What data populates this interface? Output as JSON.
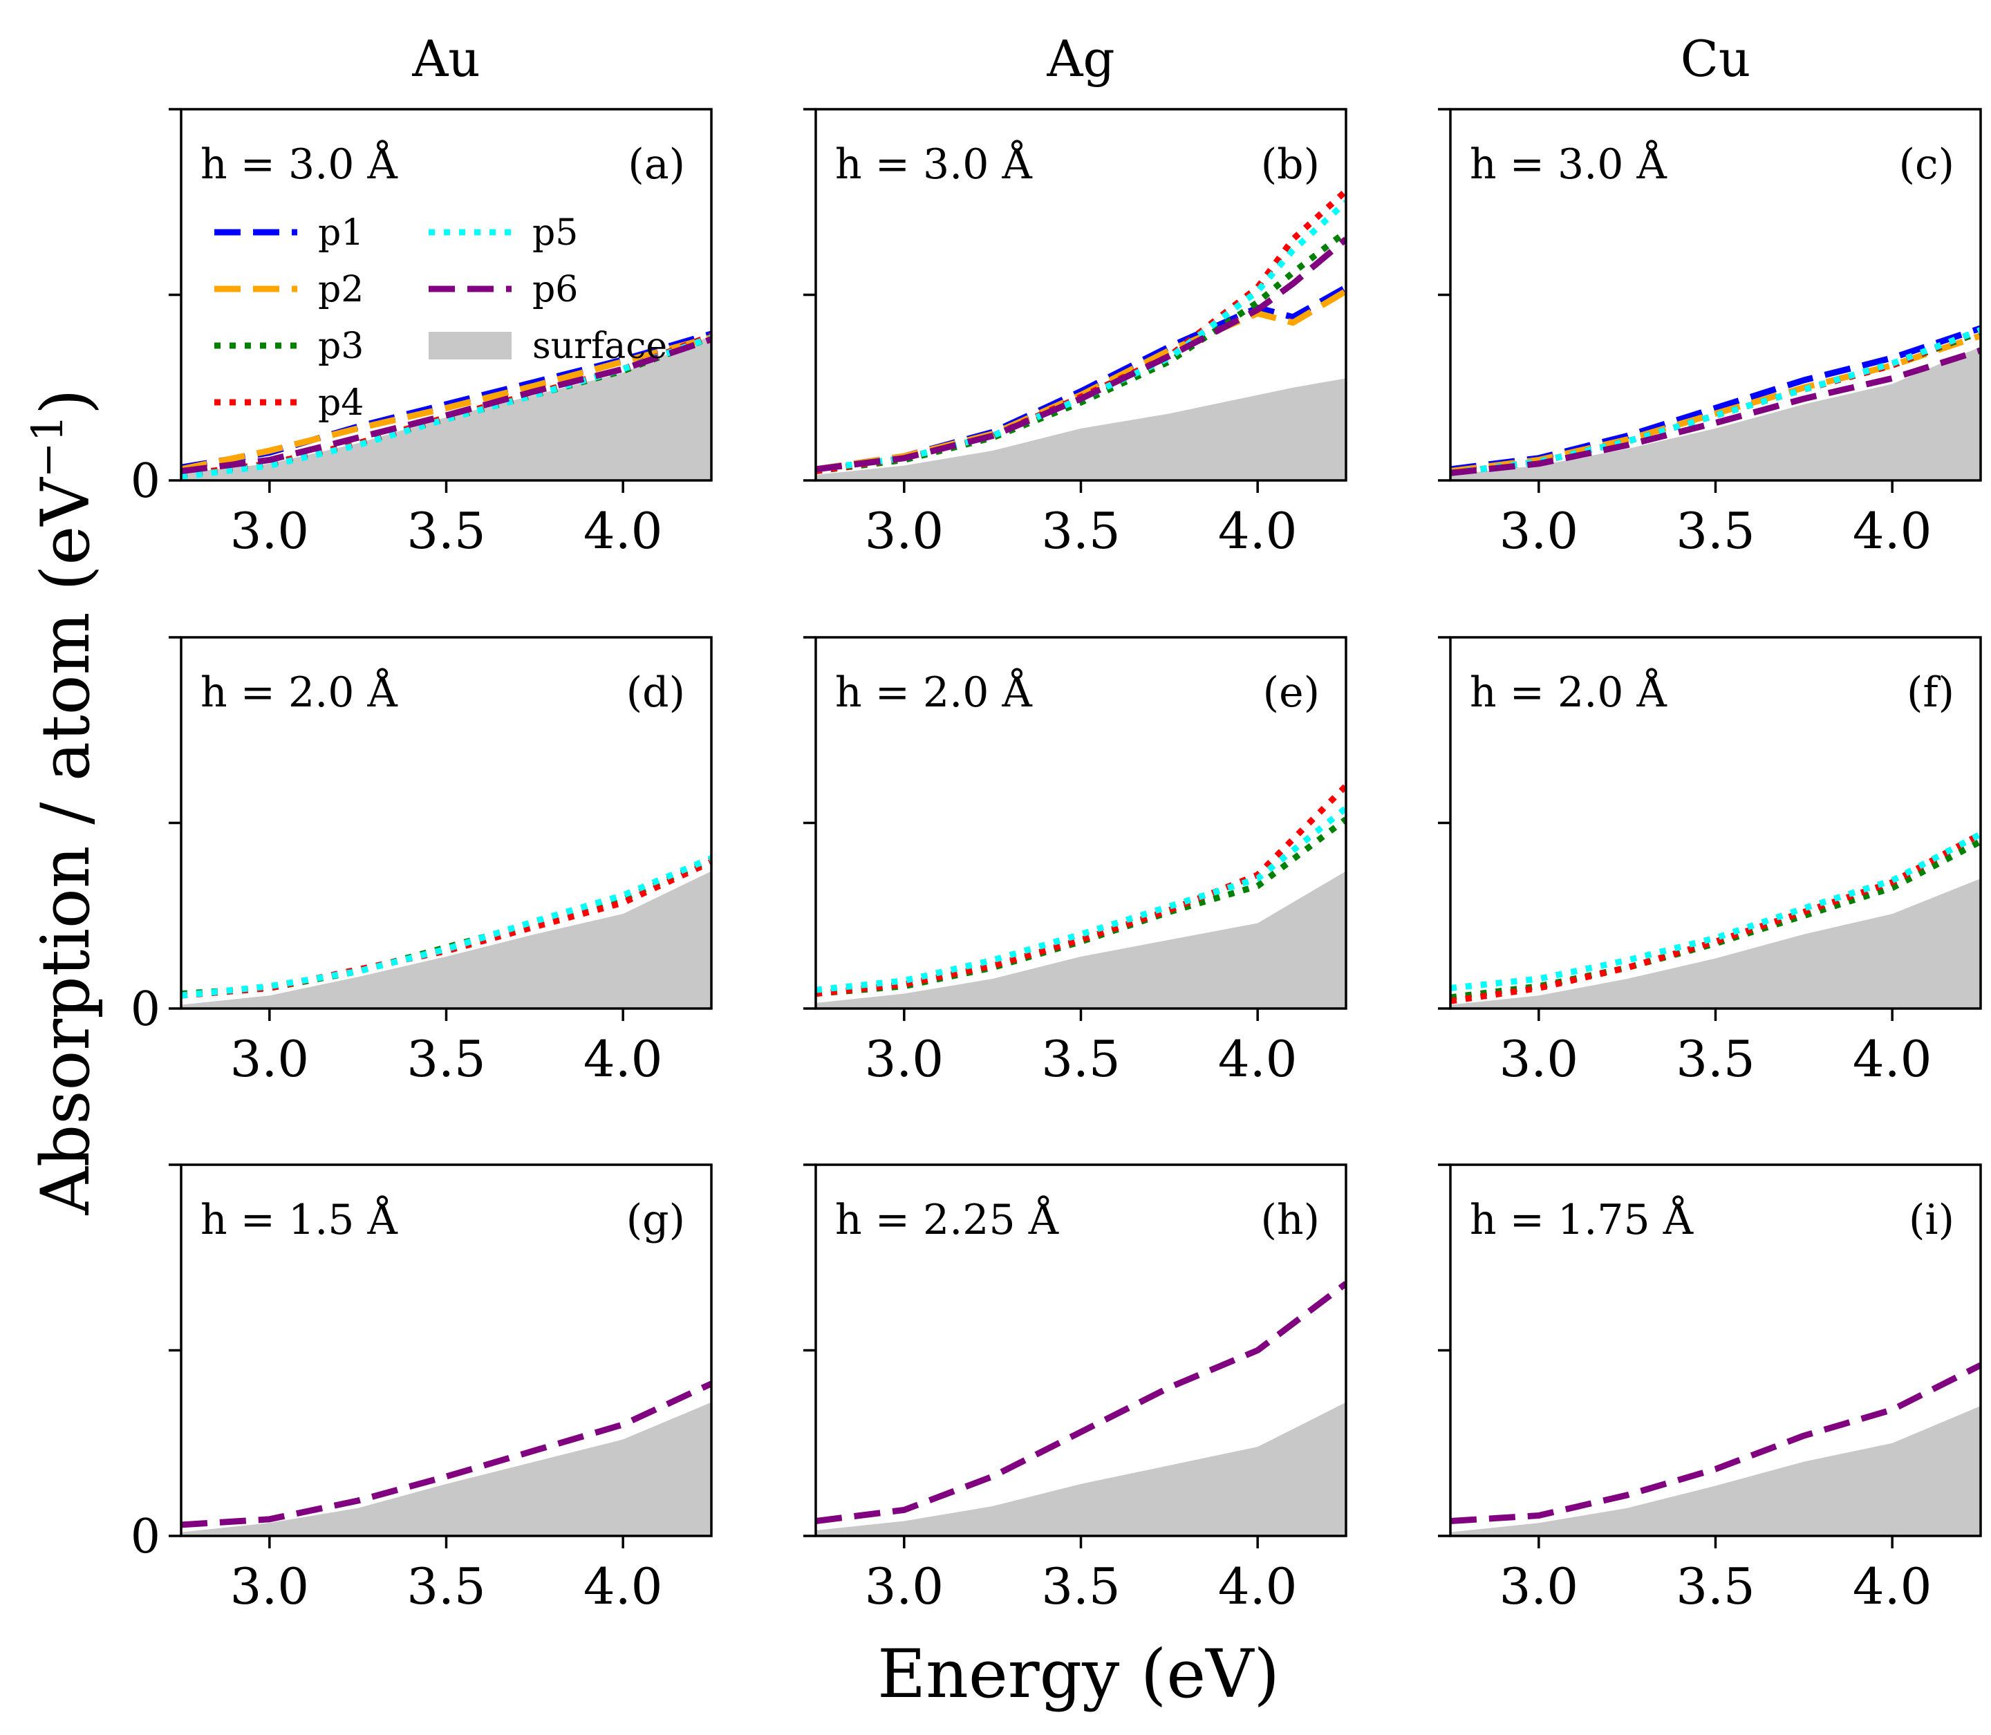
{
  "figure": {
    "ylabel": "Absorption / atom (eV",
    "ylabel_sup": "−1",
    "ylabel_close": ")",
    "xlabel": "Energy (eV)",
    "column_titles": [
      "Au",
      "Ag",
      "Cu"
    ]
  },
  "colors": {
    "p1": "#0000ff",
    "p2": "#ffa500",
    "p3": "#008000",
    "p4": "#ff0000",
    "p5": "#00ffff",
    "p6": "#800080",
    "surface": "#c8c8c8"
  },
  "legend": [
    {
      "key": "p1",
      "label": "p1",
      "style": "dashed"
    },
    {
      "key": "p2",
      "label": "p2",
      "style": "dashed"
    },
    {
      "key": "p3",
      "label": "p3",
      "style": "dotted"
    },
    {
      "key": "p4",
      "label": "p4",
      "style": "dotted"
    },
    {
      "key": "p5",
      "label": "p5",
      "style": "dotted"
    },
    {
      "key": "p6",
      "label": "p6",
      "style": "dashed"
    },
    {
      "key": "surface",
      "label": "surface",
      "style": "fill"
    }
  ],
  "chart_data": [
    {
      "type": "area",
      "panel": "(a)",
      "annotation": "h = 3.0 Å",
      "metal": "Au",
      "xlim": [
        2.75,
        4.25
      ],
      "ylim": [
        0,
        10
      ],
      "xticks": [
        "3.0",
        "3.5",
        "4.0"
      ],
      "yticks": [
        "0"
      ],
      "x": [
        2.75,
        3.0,
        3.25,
        3.5,
        3.75,
        4.0,
        4.25
      ],
      "surface": [
        0.2,
        0.45,
        1.0,
        1.7,
        2.3,
        2.9,
        3.9
      ],
      "series": [
        {
          "name": "p1",
          "values": [
            0.35,
            0.75,
            1.45,
            2.05,
            2.65,
            3.25,
            3.95
          ]
        },
        {
          "name": "p2",
          "values": [
            0.3,
            0.8,
            1.4,
            1.95,
            2.55,
            3.2,
            3.85
          ]
        },
        {
          "name": "p3",
          "values": [
            0.15,
            0.45,
            1.0,
            1.65,
            2.3,
            2.95,
            3.85
          ]
        },
        {
          "name": "p4",
          "values": [
            0.15,
            0.45,
            1.0,
            1.7,
            2.35,
            3.0,
            3.9
          ]
        },
        {
          "name": "p5",
          "values": [
            0.1,
            0.4,
            0.95,
            1.65,
            2.3,
            3.0,
            3.85
          ]
        },
        {
          "name": "p6",
          "values": [
            0.25,
            0.55,
            1.15,
            1.75,
            2.4,
            3.0,
            3.8
          ]
        }
      ]
    },
    {
      "type": "area",
      "panel": "(b)",
      "annotation": "h = 3.0 Å",
      "metal": "Ag",
      "xlim": [
        2.75,
        4.25
      ],
      "ylim": [
        0,
        10
      ],
      "xticks": [
        "3.0",
        "3.5",
        "4.0"
      ],
      "yticks": [
        ""
      ],
      "x": [
        2.75,
        3.0,
        3.25,
        3.5,
        3.75,
        4.0,
        4.1,
        4.25
      ],
      "surface": [
        0.15,
        0.4,
        0.8,
        1.4,
        1.8,
        2.3,
        2.5,
        2.75
      ],
      "series": [
        {
          "name": "p1",
          "values": [
            0.3,
            0.65,
            1.3,
            2.4,
            3.6,
            4.65,
            4.4,
            5.2
          ]
        },
        {
          "name": "p2",
          "values": [
            0.3,
            0.65,
            1.25,
            2.3,
            3.5,
            4.5,
            4.25,
            5.1
          ]
        },
        {
          "name": "p3",
          "values": [
            0.25,
            0.55,
            1.15,
            2.1,
            3.2,
            4.8,
            5.6,
            6.7
          ]
        },
        {
          "name": "p4",
          "values": [
            0.25,
            0.6,
            1.2,
            2.25,
            3.35,
            5.2,
            6.5,
            7.8
          ]
        },
        {
          "name": "p5",
          "values": [
            0.3,
            0.6,
            1.2,
            2.2,
            3.3,
            5.1,
            6.2,
            7.5
          ]
        },
        {
          "name": "p6",
          "values": [
            0.3,
            0.6,
            1.2,
            2.2,
            3.35,
            4.6,
            5.3,
            6.5
          ]
        }
      ]
    },
    {
      "type": "area",
      "panel": "(c)",
      "annotation": "h = 3.0 Å",
      "metal": "Cu",
      "xlim": [
        2.75,
        4.25
      ],
      "ylim": [
        0,
        10
      ],
      "xticks": [
        "3.0",
        "3.5",
        "4.0"
      ],
      "yticks": [
        ""
      ],
      "x": [
        2.75,
        3.0,
        3.25,
        3.5,
        3.75,
        4.0,
        4.25
      ],
      "surface": [
        0.15,
        0.4,
        0.85,
        1.4,
        2.05,
        2.6,
        3.6
      ],
      "series": [
        {
          "name": "p1",
          "values": [
            0.3,
            0.6,
            1.2,
            1.95,
            2.7,
            3.3,
            4.1
          ]
        },
        {
          "name": "p2",
          "values": [
            0.25,
            0.55,
            1.1,
            1.8,
            2.5,
            3.1,
            3.9
          ]
        },
        {
          "name": "p3",
          "values": [
            0.2,
            0.5,
            1.05,
            1.75,
            2.45,
            3.1,
            4.0
          ]
        },
        {
          "name": "p4",
          "values": [
            0.2,
            0.5,
            1.05,
            1.75,
            2.45,
            3.1,
            4.05
          ]
        },
        {
          "name": "p5",
          "values": [
            0.2,
            0.5,
            1.05,
            1.75,
            2.45,
            3.15,
            4.05
          ]
        },
        {
          "name": "p6",
          "values": [
            0.2,
            0.45,
            0.95,
            1.55,
            2.2,
            2.75,
            3.5
          ]
        }
      ]
    },
    {
      "type": "area",
      "panel": "(d)",
      "annotation": "h = 2.0 Å",
      "metal": "Au",
      "xlim": [
        2.75,
        4.25
      ],
      "ylim": [
        0,
        10
      ],
      "xticks": [
        "3.0",
        "3.5",
        "4.0"
      ],
      "yticks": [
        "0"
      ],
      "x": [
        2.75,
        3.0,
        3.25,
        3.5,
        3.75,
        4.0,
        4.25
      ],
      "surface": [
        0.1,
        0.35,
        0.85,
        1.4,
        2.0,
        2.55,
        3.7
      ],
      "series": [
        {
          "name": "p3",
          "values": [
            0.4,
            0.55,
            1.0,
            1.65,
            2.3,
            2.95,
            4.0
          ]
        },
        {
          "name": "p4",
          "values": [
            0.35,
            0.55,
            1.05,
            1.55,
            2.2,
            2.85,
            3.95
          ]
        },
        {
          "name": "p5",
          "values": [
            0.35,
            0.6,
            1.0,
            1.6,
            2.35,
            3.05,
            4.05
          ]
        }
      ]
    },
    {
      "type": "area",
      "panel": "(e)",
      "annotation": "h = 2.0 Å",
      "metal": "Ag",
      "xlim": [
        2.75,
        4.25
      ],
      "ylim": [
        0,
        10
      ],
      "xticks": [
        "3.0",
        "3.5",
        "4.0"
      ],
      "yticks": [
        ""
      ],
      "x": [
        2.75,
        3.0,
        3.25,
        3.5,
        3.75,
        4.0,
        4.25
      ],
      "surface": [
        0.15,
        0.4,
        0.8,
        1.4,
        1.85,
        2.3,
        3.7
      ],
      "series": [
        {
          "name": "p3",
          "values": [
            0.4,
            0.6,
            1.1,
            1.8,
            2.6,
            3.3,
            5.1
          ]
        },
        {
          "name": "p4",
          "values": [
            0.4,
            0.65,
            1.15,
            1.85,
            2.65,
            3.6,
            6.0
          ]
        },
        {
          "name": "p5",
          "values": [
            0.5,
            0.75,
            1.3,
            2.0,
            2.75,
            3.5,
            5.4
          ]
        }
      ]
    },
    {
      "type": "area",
      "panel": "(f)",
      "annotation": "h = 2.0 Å",
      "metal": "Cu",
      "xlim": [
        2.75,
        4.25
      ],
      "ylim": [
        0,
        10
      ],
      "xticks": [
        "3.0",
        "3.5",
        "4.0"
      ],
      "yticks": [
        ""
      ],
      "x": [
        2.75,
        3.0,
        3.25,
        3.5,
        3.75,
        4.0,
        4.25
      ],
      "surface": [
        0.1,
        0.35,
        0.8,
        1.35,
        2.0,
        2.55,
        3.5
      ],
      "series": [
        {
          "name": "p3",
          "values": [
            0.3,
            0.6,
            1.1,
            1.75,
            2.5,
            3.25,
            4.5
          ]
        },
        {
          "name": "p4",
          "values": [
            0.2,
            0.55,
            1.1,
            1.8,
            2.6,
            3.4,
            4.7
          ]
        },
        {
          "name": "p5",
          "values": [
            0.55,
            0.8,
            1.3,
            1.9,
            2.7,
            3.45,
            4.7
          ]
        }
      ]
    },
    {
      "type": "area",
      "panel": "(g)",
      "annotation": "h = 1.5 Å",
      "metal": "Au",
      "xlim": [
        2.75,
        4.25
      ],
      "ylim": [
        0,
        10
      ],
      "xticks": [
        "3.0",
        "3.5",
        "4.0"
      ],
      "yticks": [
        "0"
      ],
      "x": [
        2.75,
        3.0,
        3.25,
        3.5,
        3.75,
        4.0,
        4.25
      ],
      "surface": [
        0.1,
        0.35,
        0.75,
        1.4,
        2.0,
        2.6,
        3.6
      ],
      "series": [
        {
          "name": "p6",
          "values": [
            0.3,
            0.45,
            0.95,
            1.6,
            2.3,
            3.0,
            4.1
          ]
        }
      ]
    },
    {
      "type": "area",
      "panel": "(h)",
      "annotation": "h = 2.25 Å",
      "metal": "Ag",
      "xlim": [
        2.75,
        4.25
      ],
      "ylim": [
        0,
        10
      ],
      "xticks": [
        "3.0",
        "3.5",
        "4.0"
      ],
      "yticks": [
        ""
      ],
      "x": [
        2.75,
        3.0,
        3.25,
        3.5,
        3.75,
        4.0,
        4.25
      ],
      "surface": [
        0.15,
        0.4,
        0.8,
        1.4,
        1.9,
        2.4,
        3.6
      ],
      "series": [
        {
          "name": "p6",
          "values": [
            0.4,
            0.7,
            1.6,
            2.8,
            4.0,
            5.0,
            6.8
          ]
        }
      ]
    },
    {
      "type": "area",
      "panel": "(i)",
      "annotation": "h = 1.75 Å",
      "metal": "Cu",
      "xlim": [
        2.75,
        4.25
      ],
      "ylim": [
        0,
        10
      ],
      "xticks": [
        "3.0",
        "3.5",
        "4.0"
      ],
      "yticks": [
        ""
      ],
      "x": [
        2.75,
        3.0,
        3.25,
        3.5,
        3.75,
        4.0,
        4.25
      ],
      "surface": [
        0.1,
        0.35,
        0.75,
        1.35,
        2.0,
        2.5,
        3.5
      ],
      "series": [
        {
          "name": "p6",
          "values": [
            0.4,
            0.55,
            1.1,
            1.8,
            2.7,
            3.4,
            4.6
          ]
        }
      ]
    }
  ]
}
